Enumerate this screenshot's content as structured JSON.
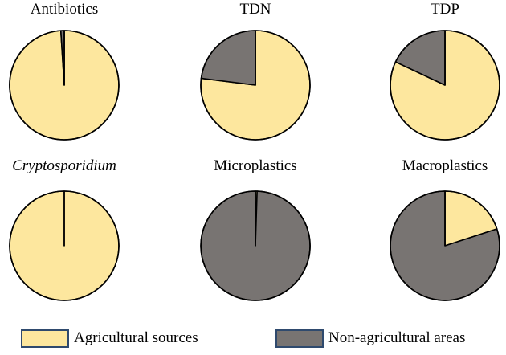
{
  "colors": {
    "agricultural": "#fde79e",
    "non_agricultural": "#787472",
    "outline": "#000000",
    "legend_border": "#2f4a6e"
  },
  "legend": [
    {
      "label": "Agricultural sources",
      "color": "#fde79e"
    },
    {
      "label": "Non-agricultural areas",
      "color": "#787472"
    }
  ],
  "chart_data": [
    {
      "type": "pie",
      "title": "Antibiotics",
      "title_style": "normal",
      "series": [
        {
          "name": "Agricultural sources",
          "value": 99
        },
        {
          "name": "Non-agricultural areas",
          "value": 1
        }
      ]
    },
    {
      "type": "pie",
      "title": "TDN",
      "title_style": "normal",
      "series": [
        {
          "name": "Agricultural sources",
          "value": 77
        },
        {
          "name": "Non-agricultural areas",
          "value": 23
        }
      ]
    },
    {
      "type": "pie",
      "title": "TDP",
      "title_style": "normal",
      "series": [
        {
          "name": "Agricultural sources",
          "value": 82
        },
        {
          "name": "Non-agricultural areas",
          "value": 18
        }
      ]
    },
    {
      "type": "pie",
      "title": "Cryptosporidium",
      "title_style": "italic",
      "series": [
        {
          "name": "Agricultural sources",
          "value": 100
        },
        {
          "name": "Non-agricultural areas",
          "value": 0
        }
      ]
    },
    {
      "type": "pie",
      "title": "Microplastics",
      "title_style": "normal",
      "series": [
        {
          "name": "Agricultural sources",
          "value": 0.5
        },
        {
          "name": "Non-agricultural areas",
          "value": 99.5
        }
      ]
    },
    {
      "type": "pie",
      "title": "Macroplastics",
      "title_style": "normal",
      "series": [
        {
          "name": "Agricultural sources",
          "value": 20
        },
        {
          "name": "Non-agricultural areas",
          "value": 80
        }
      ]
    }
  ]
}
